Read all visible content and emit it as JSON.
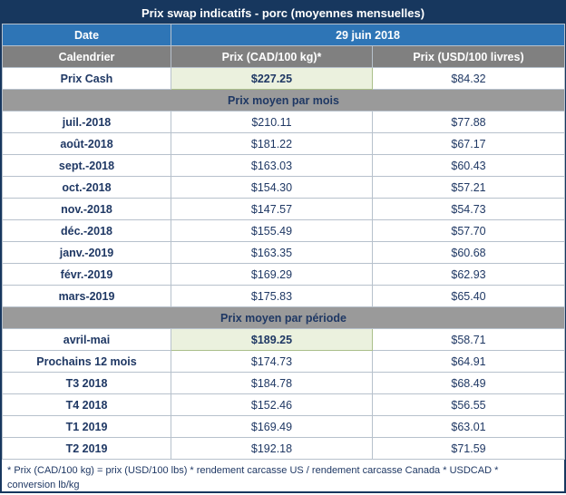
{
  "title": "Prix swap indicatifs - porc (moyennes mensuelles)",
  "date_row": {
    "label": "Date",
    "value": "29 juin 2018"
  },
  "columns": [
    "Calendrier",
    "Prix (CAD/100 kg)*",
    "Prix (USD/100 livres)"
  ],
  "cash_row": {
    "label": "Prix Cash",
    "cad": "$227.25",
    "usd": "$84.32",
    "cad_highlight": true
  },
  "sections": [
    {
      "header": "Prix moyen par mois",
      "rows": [
        {
          "label": "juil.-2018",
          "cad": "$210.11",
          "usd": "$77.88"
        },
        {
          "label": "août-2018",
          "cad": "$181.22",
          "usd": "$67.17"
        },
        {
          "label": "sept.-2018",
          "cad": "$163.03",
          "usd": "$60.43"
        },
        {
          "label": "oct.-2018",
          "cad": "$154.30",
          "usd": "$57.21"
        },
        {
          "label": "nov.-2018",
          "cad": "$147.57",
          "usd": "$54.73"
        },
        {
          "label": "déc.-2018",
          "cad": "$155.49",
          "usd": "$57.70"
        },
        {
          "label": "janv.-2019",
          "cad": "$163.35",
          "usd": "$60.68"
        },
        {
          "label": "févr.-2019",
          "cad": "$169.29",
          "usd": "$62.93"
        },
        {
          "label": "mars-2019",
          "cad": "$175.83",
          "usd": "$65.40"
        }
      ]
    },
    {
      "header": "Prix moyen par période",
      "rows": [
        {
          "label": "avril-mai",
          "cad": "$189.25",
          "usd": "$58.71",
          "cad_highlight": true
        },
        {
          "label": "Prochains 12 mois",
          "cad": "$174.73",
          "usd": "$64.91"
        },
        {
          "label": "T3 2018",
          "cad": "$184.78",
          "usd": "$68.49"
        },
        {
          "label": "T4 2018",
          "cad": "$152.46",
          "usd": "$56.55"
        },
        {
          "label": "T1 2019",
          "cad": "$169.49",
          "usd": "$63.01"
        },
        {
          "label": "T2 2019",
          "cad": "$192.18",
          "usd": "$71.59"
        }
      ]
    }
  ],
  "footnote": "* Prix (CAD/100 kg) = prix (USD/100 lbs) * rendement carcasse US / rendement carcasse Canada * USDCAD * conversion lb/kg",
  "colors": {
    "title_bg": "#17375E",
    "date_bg": "#2E75B6",
    "header_bg": "#808080",
    "section_bg": "#9A9A9A",
    "highlight_bg": "#EBF1DE",
    "text": "#1F3864",
    "border": "#17375E"
  },
  "chart_data": {
    "type": "table",
    "title": "Prix swap indicatifs - porc (moyennes mensuelles)",
    "date": "29 juin 2018",
    "columns": [
      "Calendrier",
      "Prix (CAD/100 kg)*",
      "Prix (USD/100 livres)"
    ],
    "rows": [
      [
        "Prix Cash",
        227.25,
        84.32
      ],
      [
        "juil.-2018",
        210.11,
        77.88
      ],
      [
        "août-2018",
        181.22,
        67.17
      ],
      [
        "sept.-2018",
        163.03,
        60.43
      ],
      [
        "oct.-2018",
        154.3,
        57.21
      ],
      [
        "nov.-2018",
        147.57,
        54.73
      ],
      [
        "déc.-2018",
        155.49,
        57.7
      ],
      [
        "janv.-2019",
        163.35,
        60.68
      ],
      [
        "févr.-2019",
        169.29,
        62.93
      ],
      [
        "mars-2019",
        175.83,
        65.4
      ],
      [
        "avril-mai",
        189.25,
        58.71
      ],
      [
        "Prochains 12 mois",
        174.73,
        64.91
      ],
      [
        "T3 2018",
        184.78,
        68.49
      ],
      [
        "T4 2018",
        152.46,
        56.55
      ],
      [
        "T1 2019",
        169.49,
        63.01
      ],
      [
        "T2 2019",
        192.18,
        71.59
      ]
    ],
    "section_headers": [
      "Prix moyen par mois",
      "Prix moyen par période"
    ],
    "highlighted_cells": [
      [
        "Prix Cash",
        "CAD"
      ],
      [
        "avril-mai",
        "CAD"
      ]
    ]
  }
}
